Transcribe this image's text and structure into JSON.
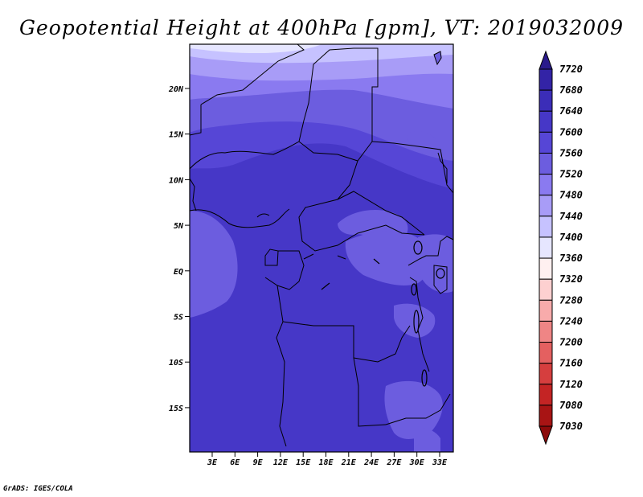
{
  "title": "Geopotential Height at 400hPa [gpm], VT: 2019032009",
  "credit": "GrADS: IGES/COLA",
  "map": {
    "lat_ticks": [
      "20N",
      "15N",
      "10N",
      "5N",
      "EQ",
      "5S",
      "10S",
      "15S"
    ],
    "lon_ticks": [
      "3E",
      "6E",
      "9E",
      "12E",
      "15E",
      "18E",
      "21E",
      "24E",
      "27E",
      "30E",
      "33E"
    ],
    "fill_main": "#4637c7",
    "fill_colors": [
      "#e6e6ff",
      "#c6c2ff",
      "#a89cf7",
      "#8a7af0",
      "#6c5ddf",
      "#5646d6",
      "#4637c7"
    ]
  },
  "colorbar": {
    "labels": [
      "7720",
      "7680",
      "7640",
      "7600",
      "7560",
      "7520",
      "7480",
      "7440",
      "7400",
      "7360",
      "7320",
      "7280",
      "7240",
      "7200",
      "7160",
      "7120",
      "7080",
      "7030"
    ],
    "colors": [
      "#2a1a8c",
      "#3323a6",
      "#3b2db8",
      "#4637c7",
      "#5646d6",
      "#6c5ddf",
      "#8a7af0",
      "#a89cf7",
      "#c6c2ff",
      "#e6e6ff",
      "#fff0f0",
      "#fdd0d0",
      "#f8abab",
      "#ef8585",
      "#e46060",
      "#d63e3e",
      "#c42424",
      "#a81414",
      "#8c0a0a"
    ]
  }
}
